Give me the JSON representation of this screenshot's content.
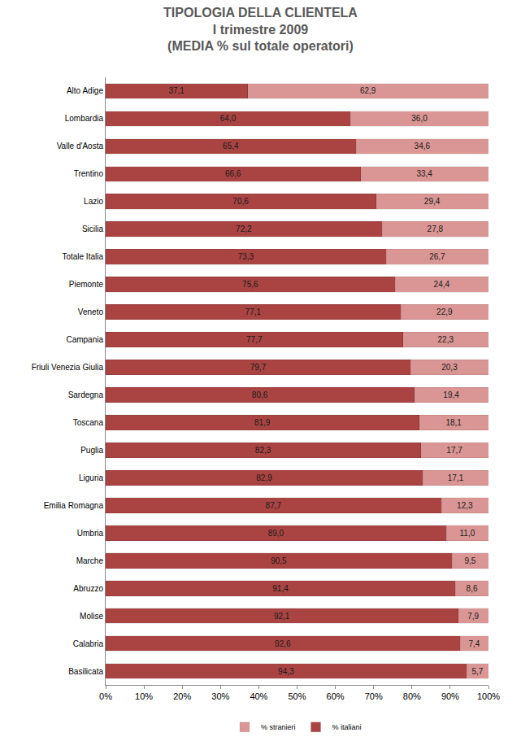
{
  "chart_data": {
    "type": "bar",
    "orientation": "horizontal",
    "stacked": true,
    "data_labels": true,
    "grid": false,
    "legend": "bottom",
    "title": [
      "TIPOLOGIA DELLA CLIENTELA",
      "I trimestre 2009",
      "(MEDIA % sul totale operatori)"
    ],
    "categories": [
      "Alto Adige",
      "Lombardia",
      "Valle d'Aosta",
      "Trentino",
      "Lazio",
      "Sicilia",
      "Totale Italia",
      "Piemonte",
      "Veneto",
      "Campania",
      "Friuli Venezia Giulia",
      "Sardegna",
      "Toscana",
      "Puglia",
      "Liguria",
      "Emilia Romagna",
      "Umbria",
      "Marche",
      "Abruzzo",
      "Molise",
      "Calabria",
      "Basilicata"
    ],
    "xlim": [
      0,
      100
    ],
    "xticks": [
      {
        "value": 0,
        "label": "0%"
      },
      {
        "value": 10,
        "label": "10%"
      },
      {
        "value": 20,
        "label": "20%"
      },
      {
        "value": 30,
        "label": "30%"
      },
      {
        "value": 40,
        "label": "40%"
      },
      {
        "value": 50,
        "label": "50%"
      },
      {
        "value": 60,
        "label": "60%"
      },
      {
        "value": 70,
        "label": "70%"
      },
      {
        "value": 80,
        "label": "80%"
      },
      {
        "value": 90,
        "label": "90%"
      },
      {
        "value": 100,
        "label": "100%"
      }
    ],
    "series": [
      {
        "name": "% italiani",
        "color": "#a94442",
        "values": [
          37.1,
          64.0,
          65.4,
          66.6,
          70.6,
          72.2,
          73.3,
          75.6,
          77.1,
          77.7,
          79.7,
          80.6,
          81.9,
          82.3,
          82.9,
          87.7,
          89.0,
          90.5,
          91.4,
          92.1,
          92.6,
          94.3
        ],
        "value_labels": [
          "37,1",
          "64,0",
          "65,4",
          "66,6",
          "70,6",
          "72,2",
          "73,3",
          "75,6",
          "77,1",
          "77,7",
          "79,7",
          "80,6",
          "81,9",
          "82,3",
          "82,9",
          "87,7",
          "89,0",
          "90,5",
          "91,4",
          "92,1",
          "92,6",
          "94,3"
        ]
      },
      {
        "name": "% stranieri",
        "color": "#d99694",
        "values": [
          62.9,
          36.0,
          34.6,
          33.4,
          29.4,
          27.8,
          26.7,
          24.4,
          22.9,
          22.3,
          20.3,
          19.4,
          18.1,
          17.7,
          17.1,
          12.3,
          11.0,
          9.5,
          8.6,
          7.9,
          7.4,
          5.7
        ],
        "value_labels": [
          "62,9",
          "36,0",
          "34,6",
          "33,4",
          "29,4",
          "27,8",
          "26,7",
          "24,4",
          "22,9",
          "22,3",
          "20,3",
          "19,4",
          "18,1",
          "17,7",
          "17,1",
          "12,3",
          "11,0",
          "9,5",
          "8,6",
          "7,9",
          "7,4",
          "5,7"
        ]
      }
    ]
  }
}
